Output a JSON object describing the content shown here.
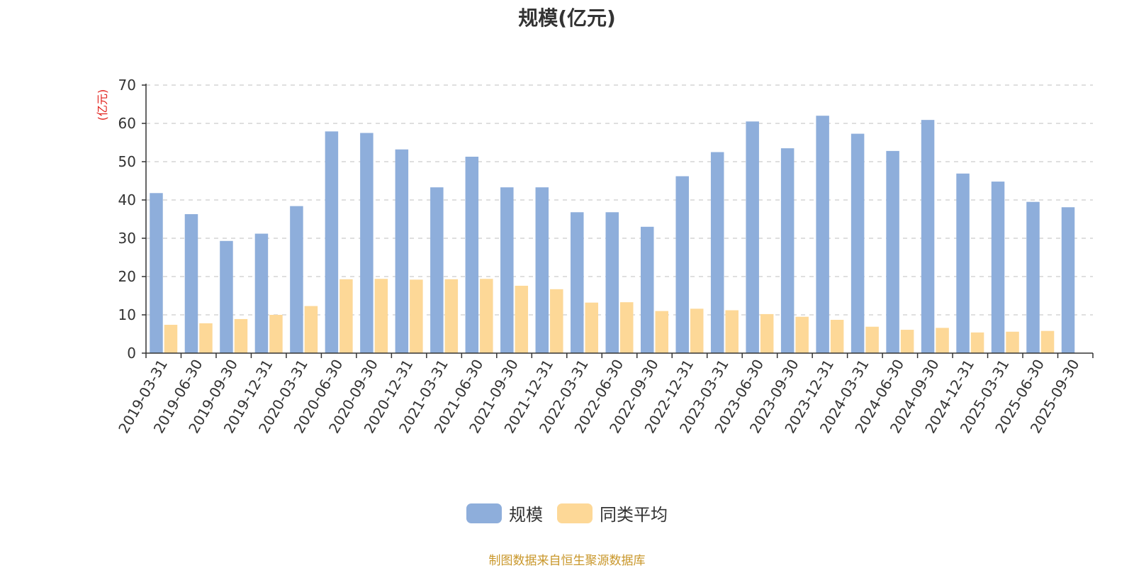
{
  "chart_data": {
    "type": "bar",
    "title": "规模(亿元)",
    "ylabel": "(亿元)",
    "ylim": [
      0,
      70
    ],
    "yticks": [
      0,
      10,
      20,
      30,
      40,
      50,
      60,
      70
    ],
    "grid": true,
    "legend_position": "bottom-center",
    "categories": [
      "2019-03-31",
      "2019-06-30",
      "2019-09-30",
      "2019-12-31",
      "2020-03-31",
      "2020-06-30",
      "2020-09-30",
      "2020-12-31",
      "2021-03-31",
      "2021-06-30",
      "2021-09-30",
      "2021-12-31",
      "2022-03-31",
      "2022-06-30",
      "2022-09-30",
      "2022-12-31",
      "2023-03-31",
      "2023-06-30",
      "2023-09-30",
      "2023-12-31",
      "2024-03-31",
      "2024-06-30",
      "2024-09-30",
      "2024-12-31",
      "2025-03-31",
      "2025-06-30",
      "2025-09-30"
    ],
    "series": [
      {
        "name": "规模",
        "color": "#8eaedb",
        "values": [
          41.8,
          36.3,
          29.3,
          31.2,
          38.4,
          57.9,
          57.5,
          53.2,
          43.3,
          51.3,
          43.3,
          43.3,
          36.8,
          36.8,
          33.0,
          46.2,
          52.5,
          60.5,
          53.5,
          62.0,
          57.3,
          52.8,
          60.9,
          46.9,
          44.8,
          39.5,
          38.1
        ]
      },
      {
        "name": "同类平均",
        "color": "#fdd897",
        "values": [
          7.4,
          7.8,
          8.9,
          10.0,
          12.3,
          19.3,
          19.4,
          19.2,
          19.3,
          19.4,
          17.6,
          16.7,
          13.2,
          13.3,
          11.0,
          11.6,
          11.2,
          10.2,
          9.5,
          8.7,
          6.9,
          6.1,
          6.6,
          5.4,
          5.6,
          5.8,
          null
        ]
      }
    ]
  },
  "source_note": "制图数据来自恒生聚源数据库"
}
